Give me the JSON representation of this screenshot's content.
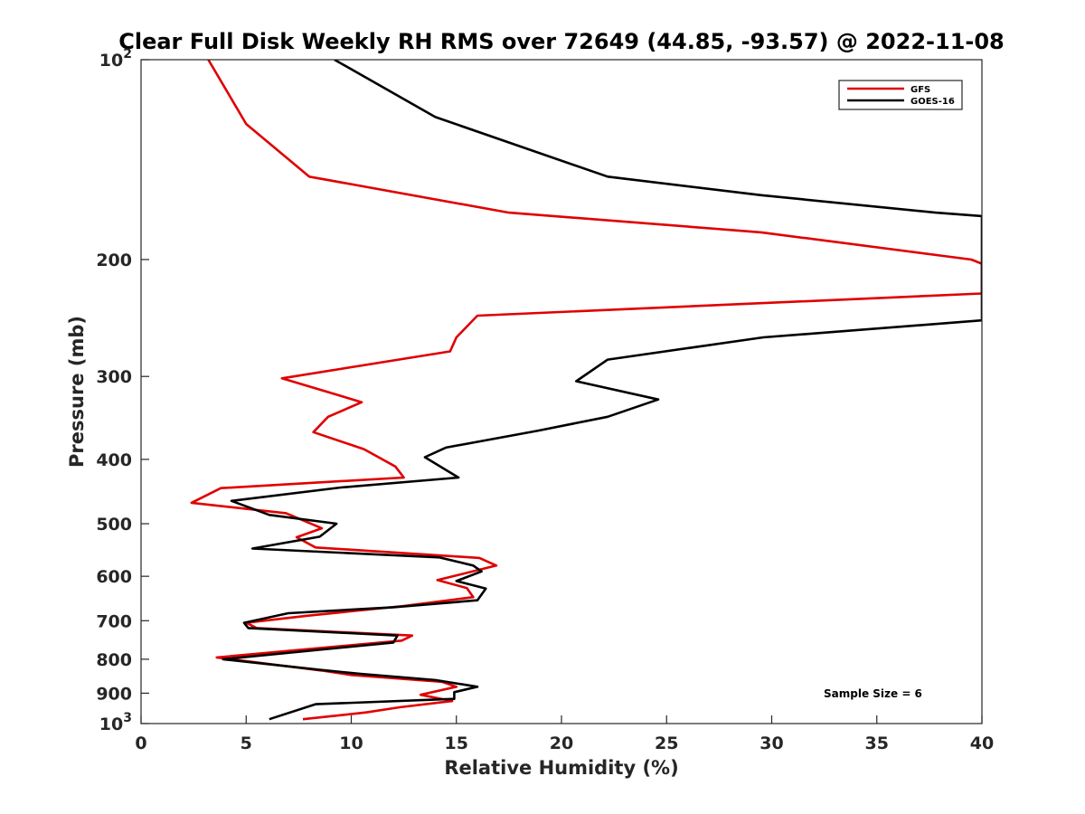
{
  "chart_data": {
    "type": "line",
    "title": "Clear Full Disk Weekly RH RMS over 72649 (44.85, -93.57) @ 2022-11-08",
    "xlabel": "Relative Humidity (%)",
    "ylabel": "Pressure (mb)",
    "xlim": [
      0,
      40
    ],
    "ylim": [
      100,
      1000
    ],
    "y_scale": "log",
    "y_reversed": true,
    "x_ticks": [
      "0",
      "5",
      "10",
      "15",
      "20",
      "25",
      "30",
      "35",
      "40"
    ],
    "y_ticks": [
      {
        "value": 100,
        "base": "10",
        "exp": "2"
      },
      {
        "value": 200,
        "label": "200"
      },
      {
        "value": 300,
        "label": "300"
      },
      {
        "value": 400,
        "label": "400"
      },
      {
        "value": 500,
        "label": "500"
      },
      {
        "value": 600,
        "label": "600"
      },
      {
        "value": 700,
        "label": "700"
      },
      {
        "value": 800,
        "label": "800"
      },
      {
        "value": 900,
        "label": "900"
      },
      {
        "value": 1000,
        "base": "10",
        "exp": "3"
      }
    ],
    "legend_position": "top-right",
    "annotation": "Sample Size = 6",
    "series": [
      {
        "name": "GFS",
        "color": "#e00000",
        "points": [
          [
            3.2,
            100
          ],
          [
            5.0,
            125
          ],
          [
            8.0,
            150
          ],
          [
            17.5,
            170
          ],
          [
            29.5,
            182
          ],
          [
            39.5,
            200
          ],
          [
            40.0,
            203
          ],
          [
            40.0,
            225
          ],
          [
            16.0,
            243
          ],
          [
            15.0,
            262
          ],
          [
            14.7,
            275
          ],
          [
            6.7,
            302
          ],
          [
            10.5,
            328
          ],
          [
            8.9,
            345
          ],
          [
            8.2,
            364
          ],
          [
            10.6,
            386
          ],
          [
            12.1,
            410
          ],
          [
            12.5,
            426
          ],
          [
            3.8,
            442
          ],
          [
            2.4,
            465
          ],
          [
            6.9,
            482
          ],
          [
            8.6,
            508
          ],
          [
            7.4,
            524
          ],
          [
            8.3,
            543
          ],
          [
            16.1,
            563
          ],
          [
            16.9,
            578
          ],
          [
            14.1,
            608
          ],
          [
            15.5,
            625
          ],
          [
            15.8,
            645
          ],
          [
            12.5,
            665
          ],
          [
            7.9,
            688
          ],
          [
            5.0,
            705
          ],
          [
            5.5,
            718
          ],
          [
            12.9,
            737
          ],
          [
            12.4,
            750
          ],
          [
            3.6,
            795
          ],
          [
            8.6,
            832
          ],
          [
            10.0,
            845
          ],
          [
            14.3,
            865
          ],
          [
            15.0,
            880
          ],
          [
            13.3,
            905
          ],
          [
            14.8,
            925
          ],
          [
            12.3,
            945
          ],
          [
            10.7,
            962
          ],
          [
            7.7,
            985
          ]
        ]
      },
      {
        "name": "GOES-16",
        "color": "#000000",
        "points": [
          [
            9.2,
            100
          ],
          [
            14.0,
            122
          ],
          [
            22.2,
            150
          ],
          [
            29.5,
            160
          ],
          [
            37.8,
            170
          ],
          [
            40.0,
            172
          ],
          [
            40.0,
            247
          ],
          [
            29.6,
            262
          ],
          [
            22.2,
            283
          ],
          [
            20.7,
            305
          ],
          [
            24.6,
            325
          ],
          [
            22.2,
            345
          ],
          [
            18.9,
            362
          ],
          [
            14.5,
            384
          ],
          [
            13.5,
            397
          ],
          [
            15.1,
            426
          ],
          [
            9.5,
            441
          ],
          [
            4.3,
            462
          ],
          [
            6.1,
            485
          ],
          [
            9.3,
            500
          ],
          [
            8.5,
            523
          ],
          [
            5.3,
            545
          ],
          [
            14.2,
            562
          ],
          [
            15.8,
            578
          ],
          [
            16.2,
            590
          ],
          [
            15.0,
            610
          ],
          [
            16.4,
            626
          ],
          [
            16.0,
            652
          ],
          [
            12.0,
            668
          ],
          [
            7.0,
            682
          ],
          [
            4.9,
            705
          ],
          [
            5.1,
            718
          ],
          [
            12.2,
            737
          ],
          [
            12.0,
            755
          ],
          [
            3.9,
            800
          ],
          [
            8.5,
            830
          ],
          [
            10.5,
            842
          ],
          [
            14.0,
            860
          ],
          [
            16.0,
            880
          ],
          [
            14.9,
            897
          ],
          [
            14.9,
            918
          ],
          [
            8.3,
            935
          ],
          [
            6.1,
            985
          ]
        ]
      }
    ]
  }
}
